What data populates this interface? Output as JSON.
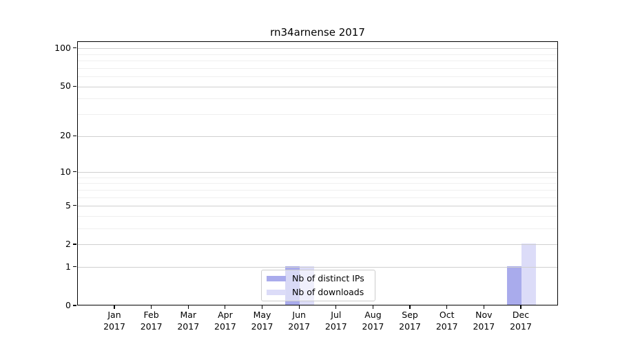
{
  "chart_data": {
    "type": "bar",
    "title": "rn34arnense 2017",
    "categories": [
      "Jan",
      "Feb",
      "Mar",
      "Apr",
      "May",
      "Jun",
      "Jul",
      "Aug",
      "Sep",
      "Oct",
      "Nov",
      "Dec"
    ],
    "x_year_label": "2017",
    "series": [
      {
        "name": "Nb of distinct IPs",
        "color": "#a9abec",
        "values": [
          0,
          0,
          0,
          0,
          0,
          1,
          0,
          0,
          0,
          0,
          0,
          1
        ]
      },
      {
        "name": "Nb of downloads",
        "color": "#dcdcf8",
        "values": [
          0,
          0,
          0,
          0,
          0,
          1,
          0,
          0,
          0,
          0,
          0,
          2
        ]
      }
    ],
    "y_axis": {
      "ticks": [
        0,
        1,
        2,
        5,
        10,
        20,
        50,
        100
      ],
      "minor_ticks": [
        3,
        4,
        6,
        7,
        8,
        9,
        30,
        40,
        60,
        70,
        80,
        90
      ],
      "scale": "log1p",
      "max": 113
    },
    "x_axis": {
      "label_format": "month over year"
    },
    "legend": {
      "position": "bottom-center",
      "entries": [
        "Nb of distinct IPs",
        "Nb of downloads"
      ]
    },
    "grid": true
  },
  "colors": {
    "bar_distinct_ips": "#a9abec",
    "bar_downloads": "#dcdcf8",
    "grid_major": "#cfcfcf",
    "grid_minor": "#efefef",
    "axis": "#000000",
    "legend_border": "#cccccc",
    "background": "#ffffff"
  }
}
